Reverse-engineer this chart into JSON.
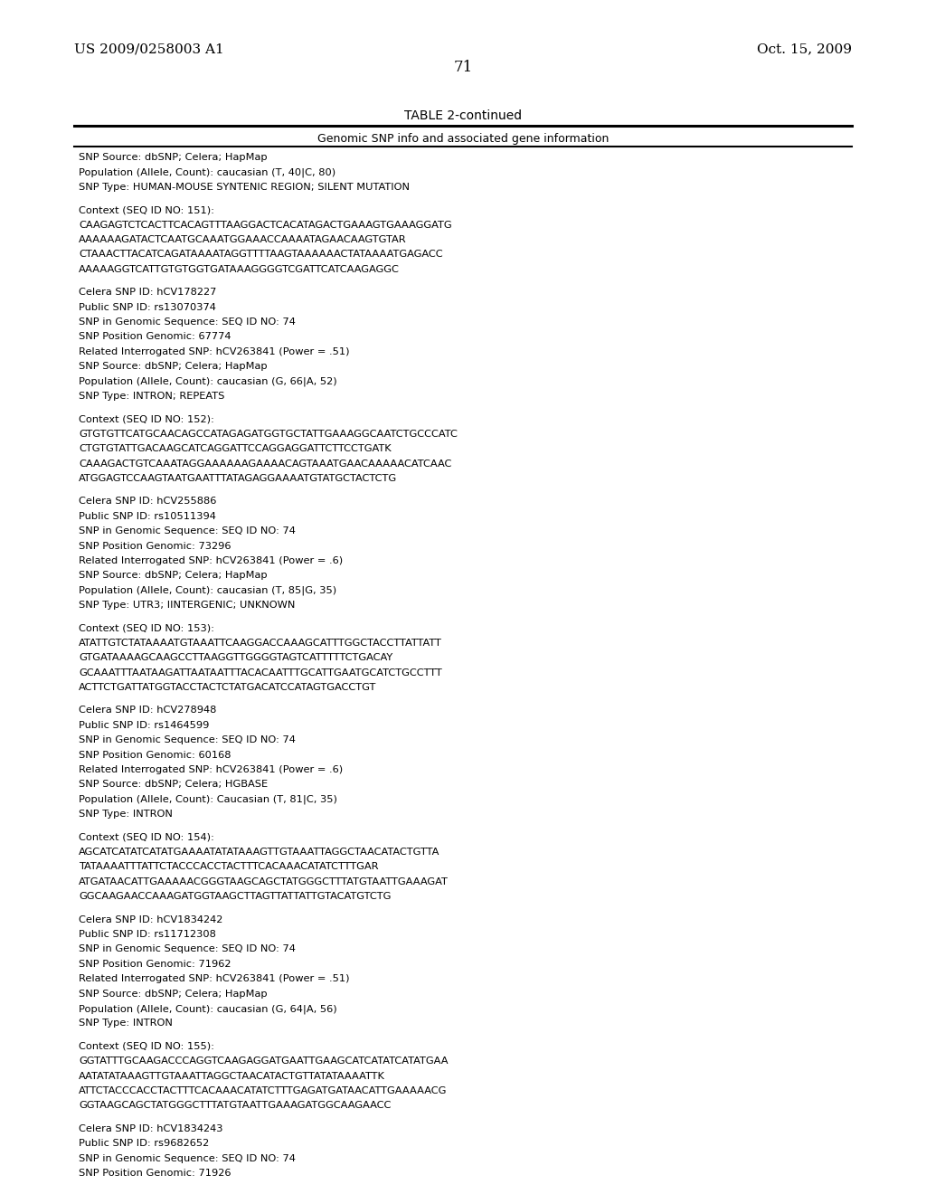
{
  "patent_number": "US 2009/0258003 A1",
  "date": "Oct. 15, 2009",
  "page_number": "71",
  "table_title": "TABLE 2-continued",
  "table_header": "Genomic SNP info and associated gene information",
  "background_color": "#ffffff",
  "text_color": "#000000",
  "content": [
    "SNP Source: dbSNP; Celera; HapMap",
    "Population (Allele, Count): caucasian (T, 40|C, 80)",
    "SNP Type: HUMAN-MOUSE SYNTENIC REGION; SILENT MUTATION",
    "",
    "Context (SEQ ID NO: 151):",
    "CAAGAGTCTCACTTCACAGTTTAAGGACTCACATAGACTGAAAGTGAAAGGATG",
    "AAAAAAGATACTCAATGCAAATGGAAACCAAAATAGAACAAGTGTAR",
    "CTAAACTTACATCAGATAAAATAGGTTTTAAGTAAAAAACTATAAAATGAGACC",
    "AAAAAGGTCATTGTGTGGTGATAAAGGGGTCGATTCATCAAGAGGC",
    "",
    "Celera SNP ID: hCV178227",
    "Public SNP ID: rs13070374",
    "SNP in Genomic Sequence: SEQ ID NO: 74",
    "SNP Position Genomic: 67774",
    "Related Interrogated SNP: hCV263841 (Power = .51)",
    "SNP Source: dbSNP; Celera; HapMap",
    "Population (Allele, Count): caucasian (G, 66|A, 52)",
    "SNP Type: INTRON; REPEATS",
    "",
    "Context (SEQ ID NO: 152):",
    "GTGTGTTCATGCAACAGCCATAGAGATGGTGCTATTGAAAGGCAATCTGCCCATC",
    "CTGTGTATTGACAAGCATCAGGATTCCAGGAGGATTCTTCCTGATK",
    "CAAAGACTGTCAAATAGGAAAAAAGAAAACAGTAAATGAACAAAAACATCAAC",
    "ATGGAGTCCAAGTAATGAATTTATAGAGGAAAATGTATGCTACTCTG",
    "",
    "Celera SNP ID: hCV255886",
    "Public SNP ID: rs10511394",
    "SNP in Genomic Sequence: SEQ ID NO: 74",
    "SNP Position Genomic: 73296",
    "Related Interrogated SNP: hCV263841 (Power = .6)",
    "SNP Source: dbSNP; Celera; HapMap",
    "Population (Allele, Count): caucasian (T, 85|G, 35)",
    "SNP Type: UTR3; IINTERGENIC; UNKNOWN",
    "",
    "Context (SEQ ID NO: 153):",
    "ATATTGTCTATAAAATGTAAATTCAAGGACCAAAGCATTTGGCTACCTTATTATT",
    "GTGATAAAAGCAAGCCTTAAGGTTGGGGTAGTCATTTTTCTGACAY",
    "GCAAATTTAATAAGATTAATAATTTACACAATTTGCATTGAATGCATCTGCCTTT",
    "ACTTCTGATTATGGTACCTACTCTATGACATCCATAGTGACCTGT",
    "",
    "Celera SNP ID: hCV278948",
    "Public SNP ID: rs1464599",
    "SNP in Genomic Sequence: SEQ ID NO: 74",
    "SNP Position Genomic: 60168",
    "Related Interrogated SNP: hCV263841 (Power = .6)",
    "SNP Source: dbSNP; Celera; HGBASE",
    "Population (Allele, Count): Caucasian (T, 81|C, 35)",
    "SNP Type: INTRON",
    "",
    "Context (SEQ ID NO: 154):",
    "AGCATCATATCATATGAAAATATATAAAGTTGTAAATTAGGCTAACATACTGTTA",
    "TATAAAATTTATTCTACCCACCTACTTTCACAAACATATCTTTGAR",
    "ATGATAACATTGAAAAACGGGTAAGCAGCTATGGGCTTTATGTAATTGAAAGAT",
    "GGCAAGAACCAAAGATGGTAAGCTTAGTTATTATTGTACATGTCTG",
    "",
    "Celera SNP ID: hCV1834242",
    "Public SNP ID: rs11712308",
    "SNP in Genomic Sequence: SEQ ID NO: 74",
    "SNP Position Genomic: 71962",
    "Related Interrogated SNP: hCV263841 (Power = .51)",
    "SNP Source: dbSNP; Celera; HapMap",
    "Population (Allele, Count): caucasian (G, 64|A, 56)",
    "SNP Type: INTRON",
    "",
    "Context (SEQ ID NO: 155):",
    "GGTATTTGCAAGACCCAGGTCAAGAGGATGAATTGAAGCATCATATCATATGAA",
    "AATATATAAAGTTGTAAATTAGGCTAACATACTGTTATATAAAATTK",
    "ATTCTACCCACCTACTTTCACAAACATATCTTTGAGATGATAACATTGAAAAACG",
    "GGTAAGCAGCTATGGGCTTTATGTAATTGAAAGATGGCAAGAACC",
    "",
    "Celera SNP ID: hCV1834243",
    "Public SNP ID: rs9682652",
    "SNP in Genomic Sequence: SEQ ID NO: 74",
    "SNP Position Genomic: 71926"
  ]
}
